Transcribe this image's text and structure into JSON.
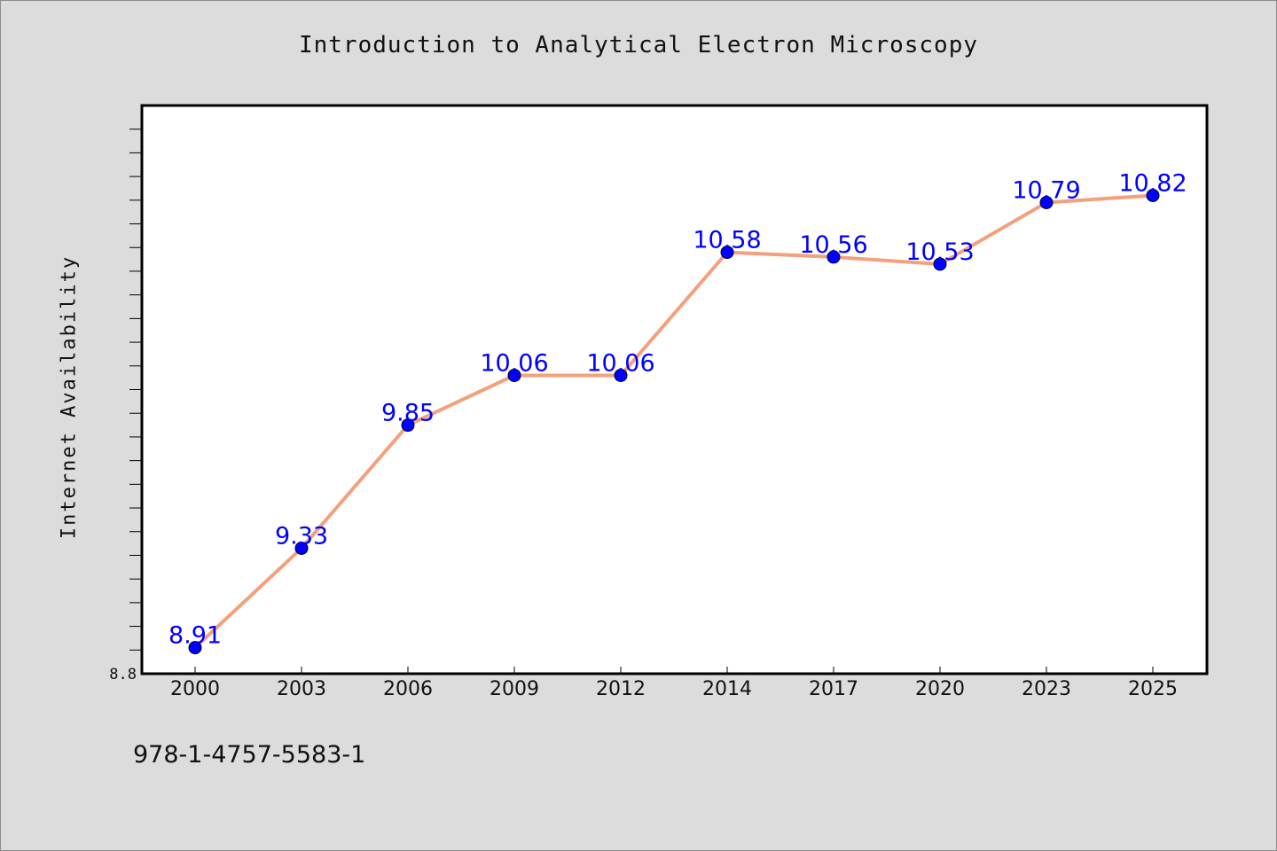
{
  "chart_data": {
    "type": "line",
    "title": "Introduction to Analytical Electron Microscopy",
    "xlabel": "",
    "ylabel": "Internet Availability",
    "categories": [
      "2000",
      "2003",
      "2006",
      "2009",
      "2012",
      "2014",
      "2017",
      "2020",
      "2023",
      "2025"
    ],
    "values": [
      8.91,
      9.33,
      9.85,
      10.06,
      10.06,
      10.58,
      10.56,
      10.53,
      10.79,
      10.82
    ],
    "value_labels": [
      "8.91",
      "9.33",
      "9.85",
      "10.06",
      "10.06",
      "10.58",
      "10.56",
      "10.53",
      "10.79",
      "10.82"
    ],
    "ylim": [
      8.8,
      11.2
    ],
    "y_tick_label": "8.8",
    "grid": false,
    "line_color": "#f4a07c",
    "marker_color": "#0000ff",
    "label_color": "#0000ff"
  },
  "footer": {
    "isbn": "978-1-4757-5583-1"
  }
}
